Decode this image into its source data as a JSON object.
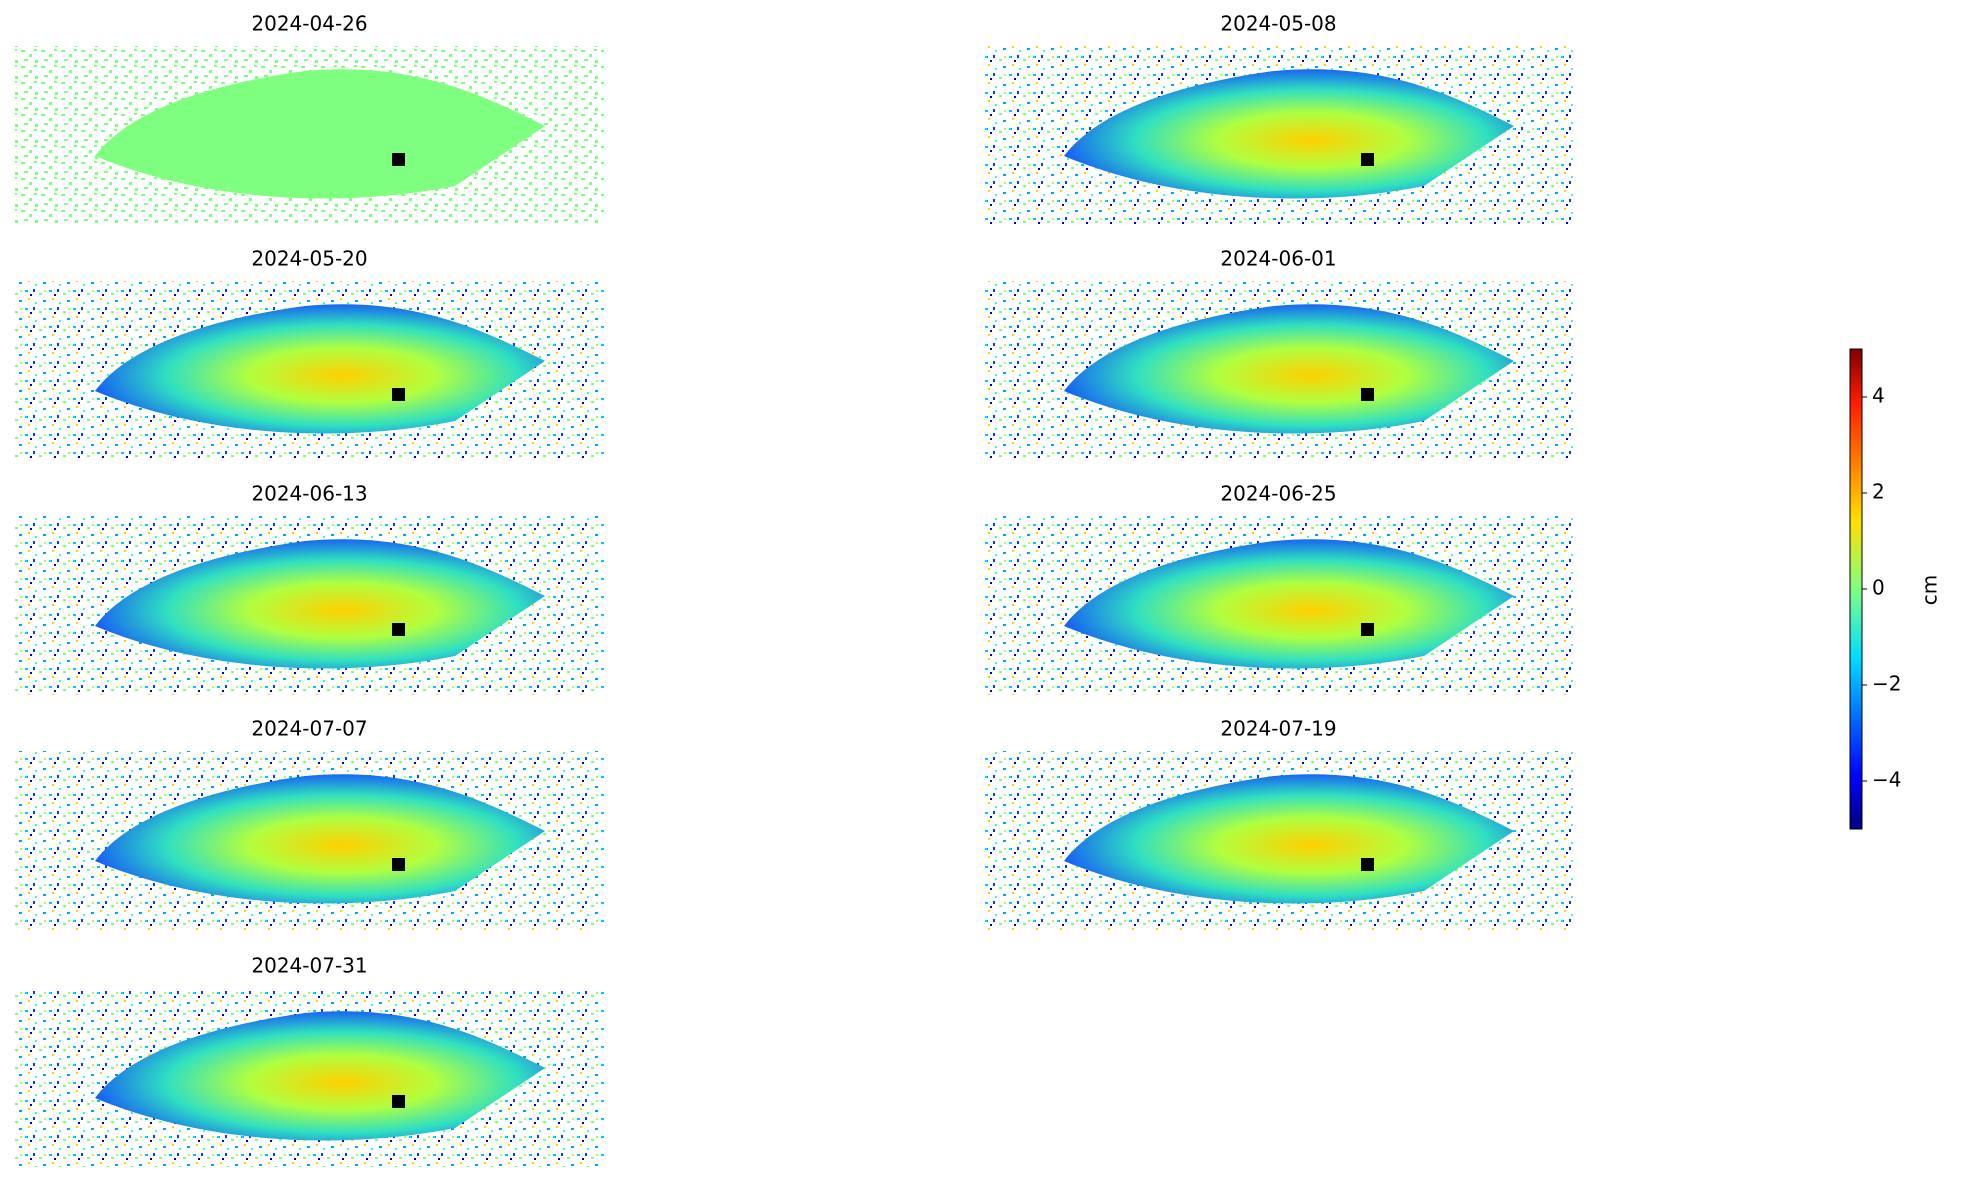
{
  "chart_data": {
    "type": "heatmap",
    "colormap": "jet",
    "panels": [
      "2024-04-26",
      "2024-05-08",
      "2024-05-20",
      "2024-06-01",
      "2024-06-13",
      "2024-06-25",
      "2024-07-07",
      "2024-07-19",
      "2024-07-31"
    ],
    "zlabel": "cm",
    "zlim": [
      -5,
      5
    ],
    "zticks": [
      {
        "value": -4,
        "label": "−4"
      },
      {
        "value": -2,
        "label": "−2"
      },
      0,
      2,
      4
    ]
  }
}
